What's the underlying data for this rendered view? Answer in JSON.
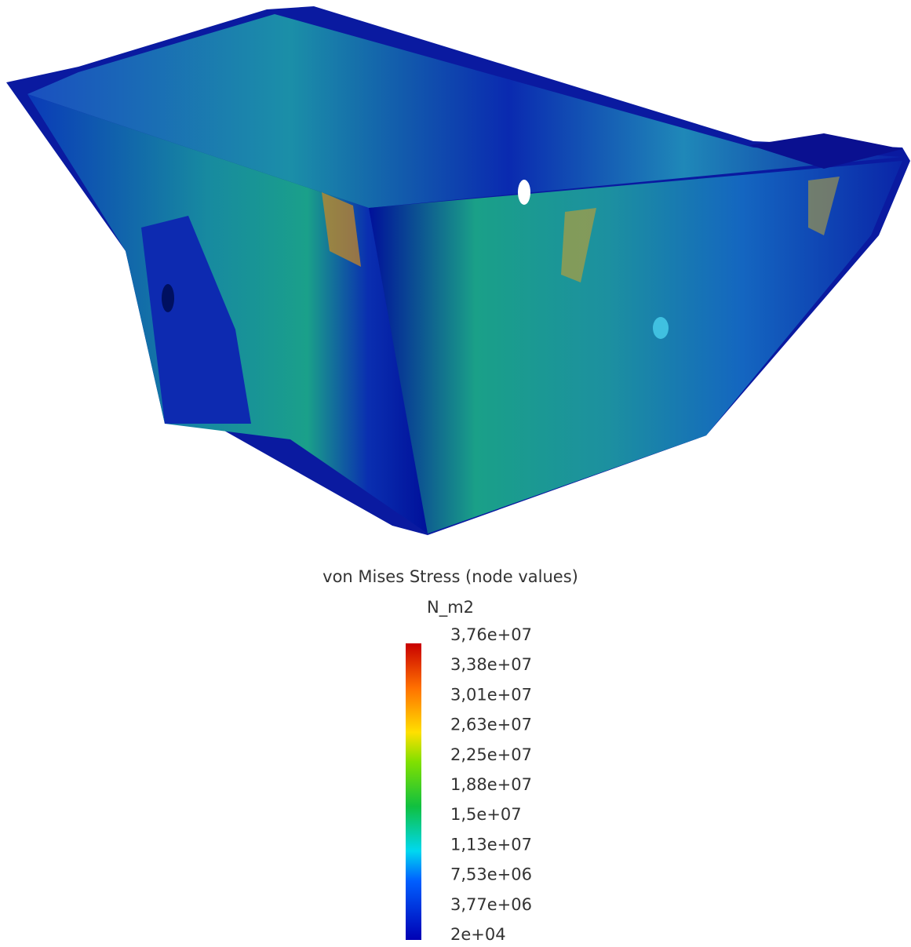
{
  "legend": {
    "title": "von Mises Stress (node values)",
    "unit": "N_m2",
    "ticks": [
      "3,76e+07",
      "3,38e+07",
      "3,01e+07",
      "2,63e+07",
      "2,25e+07",
      "1,88e+07",
      "1,5e+07",
      "1,13e+07",
      "7,53e+06",
      "3,77e+06",
      "2e+04"
    ]
  }
}
